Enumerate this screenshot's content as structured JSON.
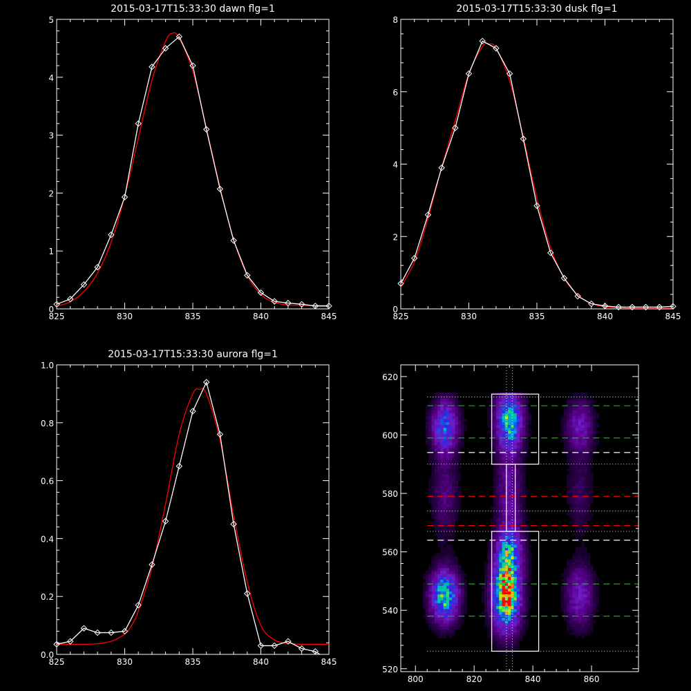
{
  "chart_data": [
    {
      "type": "line",
      "title": "2015-03-17T15:33:30 dawn flg=1",
      "xlim": [
        825,
        845
      ],
      "ylim": [
        0,
        5
      ],
      "xticks": [
        "825",
        "830",
        "835",
        "840",
        "845"
      ],
      "yticks": [
        "0",
        "1",
        "2",
        "3",
        "4",
        "5"
      ],
      "series": [
        {
          "color": "#ffffff",
          "markers": "diamond",
          "x": [
            825,
            826,
            827,
            828,
            829,
            830,
            831,
            832,
            833,
            834,
            835,
            836,
            837,
            838,
            839,
            840,
            841,
            842,
            843,
            844,
            845
          ],
          "y": [
            0.08,
            0.17,
            0.42,
            0.72,
            1.28,
            1.93,
            3.2,
            4.18,
            4.5,
            4.7,
            4.2,
            3.1,
            2.07,
            1.18,
            0.58,
            0.28,
            0.13,
            0.1,
            0.08,
            0.05,
            0.05
          ]
        },
        {
          "color": "#ff0000",
          "markers": "none",
          "x": [
            825,
            826,
            827,
            828,
            829,
            830,
            831,
            832,
            833,
            833.5,
            834,
            835,
            836,
            837,
            838,
            839,
            840,
            841,
            842,
            843,
            844,
            845
          ],
          "y": [
            0.05,
            0.12,
            0.3,
            0.62,
            1.15,
            1.95,
            2.95,
            3.95,
            4.62,
            4.76,
            4.68,
            4.1,
            3.12,
            2.1,
            1.2,
            0.58,
            0.25,
            0.11,
            0.07,
            0.06,
            0.06,
            0.06
          ]
        }
      ]
    },
    {
      "type": "line",
      "title": "2015-03-17T15:33:30 dusk flg=1",
      "xlim": [
        825,
        845
      ],
      "ylim": [
        0,
        8
      ],
      "xticks": [
        "825",
        "830",
        "835",
        "840",
        "845"
      ],
      "yticks": [
        "0",
        "2",
        "4",
        "6",
        "8"
      ],
      "series": [
        {
          "color": "#ffffff",
          "markers": "diamond",
          "x": [
            825,
            826,
            827,
            828,
            829,
            830,
            831,
            832,
            833,
            834,
            835,
            836,
            837,
            838,
            839,
            840,
            841,
            842,
            843,
            844,
            845
          ],
          "y": [
            0.7,
            1.4,
            2.6,
            3.9,
            5.0,
            6.5,
            7.4,
            7.2,
            6.5,
            4.7,
            2.85,
            1.55,
            0.85,
            0.35,
            0.14,
            0.08,
            0.05,
            0.05,
            0.05,
            0.05,
            0.07
          ]
        },
        {
          "color": "#ff0000",
          "markers": "none",
          "x": [
            825,
            826,
            827,
            828,
            829,
            830,
            831,
            831.5,
            832,
            833,
            834,
            835,
            836,
            837,
            838,
            839,
            840,
            841,
            842,
            843,
            844,
            845
          ],
          "y": [
            0.6,
            1.3,
            2.5,
            3.9,
            5.2,
            6.5,
            7.25,
            7.32,
            7.2,
            6.3,
            4.75,
            3.05,
            1.7,
            0.85,
            0.38,
            0.15,
            0.06,
            0.03,
            0.02,
            0.02,
            0.02,
            0.02
          ]
        }
      ]
    },
    {
      "type": "line",
      "title": "2015-03-17T15:33:30 aurora flg=1",
      "xlim": [
        825,
        845
      ],
      "ylim": [
        0,
        1
      ],
      "xticks": [
        "825",
        "830",
        "835",
        "840",
        "845"
      ],
      "yticks": [
        "0.0",
        "0.2",
        "0.4",
        "0.6",
        "0.8",
        "1.0"
      ],
      "series": [
        {
          "color": "#ffffff",
          "markers": "diamond",
          "x": [
            825,
            826,
            827,
            828,
            829,
            830,
            831,
            832,
            833,
            834,
            835,
            836,
            837,
            838,
            839,
            840,
            841,
            842,
            843,
            844,
            845
          ],
          "y": [
            0.035,
            0.045,
            0.09,
            0.075,
            0.075,
            0.08,
            0.17,
            0.31,
            0.46,
            0.65,
            0.84,
            0.94,
            0.76,
            0.45,
            0.21,
            0.03,
            0.03,
            0.045,
            0.02,
            0.01,
            -0.02
          ]
        },
        {
          "color": "#ff0000",
          "markers": "none",
          "x": [
            825,
            826,
            827,
            828,
            829,
            830,
            830.5,
            831,
            832,
            833,
            834,
            835,
            835.5,
            836,
            837,
            838,
            839,
            840,
            841,
            842,
            843,
            844,
            845
          ],
          "y": [
            0.035,
            0.035,
            0.035,
            0.037,
            0.045,
            0.07,
            0.1,
            0.15,
            0.3,
            0.52,
            0.76,
            0.9,
            0.915,
            0.9,
            0.74,
            0.48,
            0.25,
            0.1,
            0.05,
            0.038,
            0.035,
            0.035,
            0.035
          ]
        }
      ]
    },
    {
      "type": "heatmap",
      "title": "",
      "xlim": [
        795,
        876
      ],
      "ylim": [
        519,
        624
      ],
      "xticks": [
        "800",
        "820",
        "840",
        "860"
      ],
      "yticks": [
        "520",
        "540",
        "560",
        "580",
        "600",
        "620"
      ],
      "dotted_vlines": [
        831,
        833
      ],
      "dotted_hlines": [
        526,
        567,
        574,
        590,
        613
      ],
      "dashed_hlines": [
        {
          "y": 538,
          "color": "#00c000"
        },
        {
          "y": 549,
          "color": "#00c000"
        },
        {
          "y": 564,
          "color": "#ffffff"
        },
        {
          "y": 569,
          "color": "#ff0000"
        },
        {
          "y": 579,
          "color": "#ff0000"
        },
        {
          "y": 594,
          "color": "#ffffff"
        },
        {
          "y": 599,
          "color": "#00c000"
        },
        {
          "y": 610,
          "color": "#00c000"
        }
      ],
      "boxes": [
        {
          "x0": 826,
          "x1": 842,
          "y0": 526,
          "y1": 567
        },
        {
          "x0": 826,
          "x1": 842,
          "y0": 590,
          "y1": 614
        },
        {
          "x0": 831,
          "x1": 834,
          "y0": 567,
          "y1": 590
        }
      ]
    }
  ]
}
